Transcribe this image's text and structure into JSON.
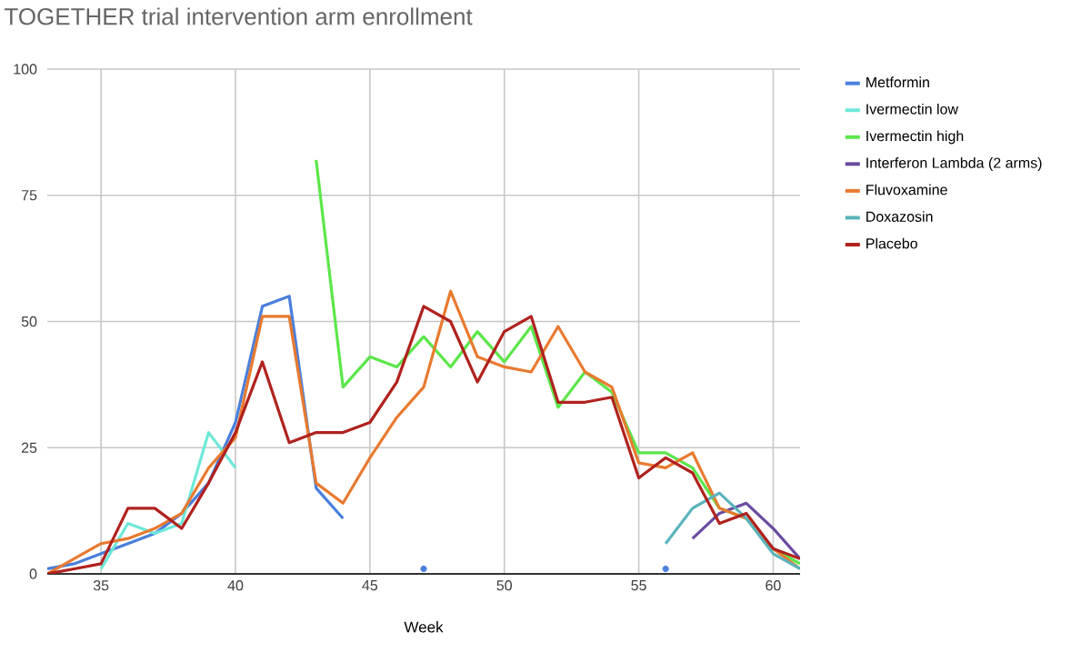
{
  "chart_data": {
    "type": "line",
    "title": "TOGETHER trial intervention arm enrollment",
    "xlabel": "Week",
    "x": [
      33,
      34,
      35,
      36,
      37,
      38,
      39,
      40,
      41,
      42,
      43,
      44,
      45,
      46,
      47,
      48,
      49,
      50,
      51,
      52,
      53,
      54,
      55,
      56,
      57,
      58,
      59,
      60,
      61
    ],
    "xlim": [
      33,
      61
    ],
    "xticks": [
      35,
      40,
      45,
      50,
      55,
      60
    ],
    "ylim": [
      0,
      100
    ],
    "yticks": [
      0,
      25,
      50,
      75,
      100
    ],
    "grid": true,
    "legend": "right",
    "marker": "none",
    "line_style": "solid",
    "series": [
      {
        "name": "Metformin",
        "color": "#4a7fdc",
        "values": [
          1,
          2,
          4,
          6,
          8,
          12,
          18,
          30,
          53,
          55,
          17,
          11,
          null,
          null,
          1,
          null,
          null,
          null,
          null,
          null,
          null,
          null,
          null,
          1,
          null,
          null,
          null,
          null,
          null
        ]
      },
      {
        "name": "Ivermectin low",
        "color": "#6ee8d8",
        "values": [
          null,
          null,
          1,
          10,
          8,
          10,
          28,
          21,
          null,
          null,
          null,
          null,
          null,
          null,
          null,
          null,
          null,
          null,
          null,
          null,
          null,
          null,
          null,
          null,
          null,
          null,
          null,
          null,
          null
        ]
      },
      {
        "name": "Ivermectin high",
        "color": "#5ce64a",
        "values": [
          null,
          null,
          null,
          null,
          null,
          null,
          null,
          null,
          null,
          null,
          82,
          37,
          43,
          41,
          47,
          41,
          48,
          42,
          49,
          33,
          40,
          36,
          24,
          24,
          21,
          13,
          11,
          5,
          2
        ]
      },
      {
        "name": "Interferon Lambda (2 arms)",
        "color": "#6a4aa0",
        "values": [
          null,
          null,
          null,
          null,
          null,
          null,
          null,
          null,
          null,
          null,
          null,
          null,
          null,
          null,
          null,
          null,
          null,
          null,
          null,
          null,
          null,
          null,
          null,
          null,
          7,
          12,
          14,
          9,
          3
        ]
      },
      {
        "name": "Fluvoxamine",
        "color": "#e87a30",
        "values": [
          0,
          3,
          6,
          7,
          9,
          12,
          21,
          27,
          51,
          51,
          18,
          14,
          23,
          31,
          37,
          56,
          43,
          41,
          40,
          49,
          40,
          37,
          22,
          21,
          24,
          13,
          11,
          5,
          1
        ]
      },
      {
        "name": "Doxazosin",
        "color": "#5ab4bc",
        "values": [
          null,
          null,
          null,
          null,
          null,
          null,
          null,
          null,
          null,
          null,
          null,
          null,
          null,
          null,
          null,
          null,
          null,
          null,
          null,
          null,
          null,
          null,
          null,
          6,
          13,
          16,
          11,
          4,
          1
        ]
      },
      {
        "name": "Placebo",
        "color": "#b0221e",
        "values": [
          0,
          1,
          2,
          13,
          13,
          9,
          18,
          28,
          42,
          26,
          28,
          28,
          30,
          38,
          53,
          50,
          38,
          48,
          51,
          34,
          34,
          35,
          19,
          23,
          20,
          10,
          12,
          5,
          3
        ]
      }
    ]
  }
}
